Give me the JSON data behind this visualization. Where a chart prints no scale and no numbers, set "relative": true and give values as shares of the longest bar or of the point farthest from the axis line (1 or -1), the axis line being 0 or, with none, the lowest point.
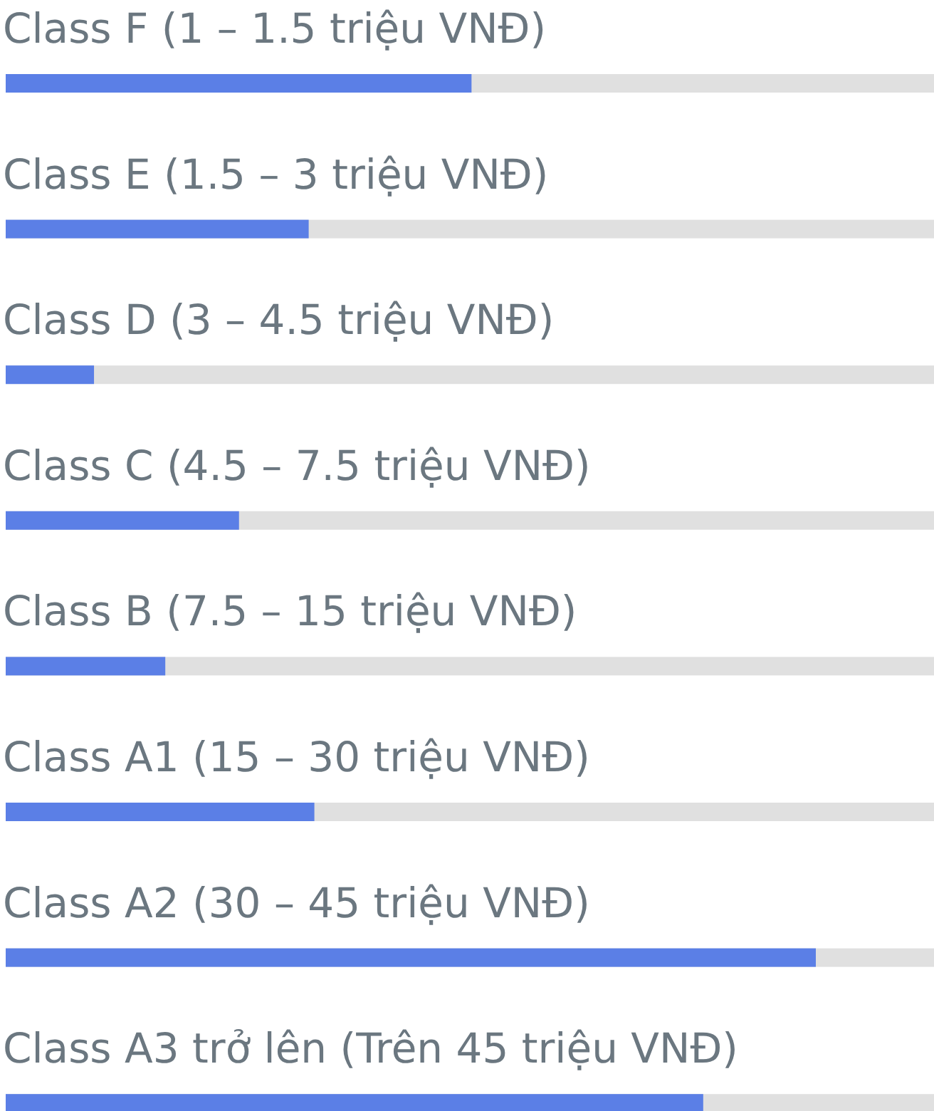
{
  "chart_data": {
    "type": "bar",
    "orientation": "horizontal",
    "relative": true,
    "color": "#5b7fe6",
    "categories": [
      "Class F (1 – 1.5 triệu VNĐ)",
      "Class E (1.5 – 3 triệu VNĐ)",
      "Class D (3 – 4.5 triệu VNĐ)",
      "Class C (4.5 – 7.5 triệu VNĐ)",
      "Class B (7.5 – 15 triệu VNĐ)",
      "Class A1 (15 – 30 triệu VNĐ)",
      "Class A2 (30 – 45 triệu VNĐ)",
      "Class A3 trở lên (Trên 45 triệu VNĐ)"
    ],
    "values": [
      0.575,
      0.374,
      0.109,
      0.288,
      0.197,
      0.381,
      1,
      0.861
    ]
  }
}
